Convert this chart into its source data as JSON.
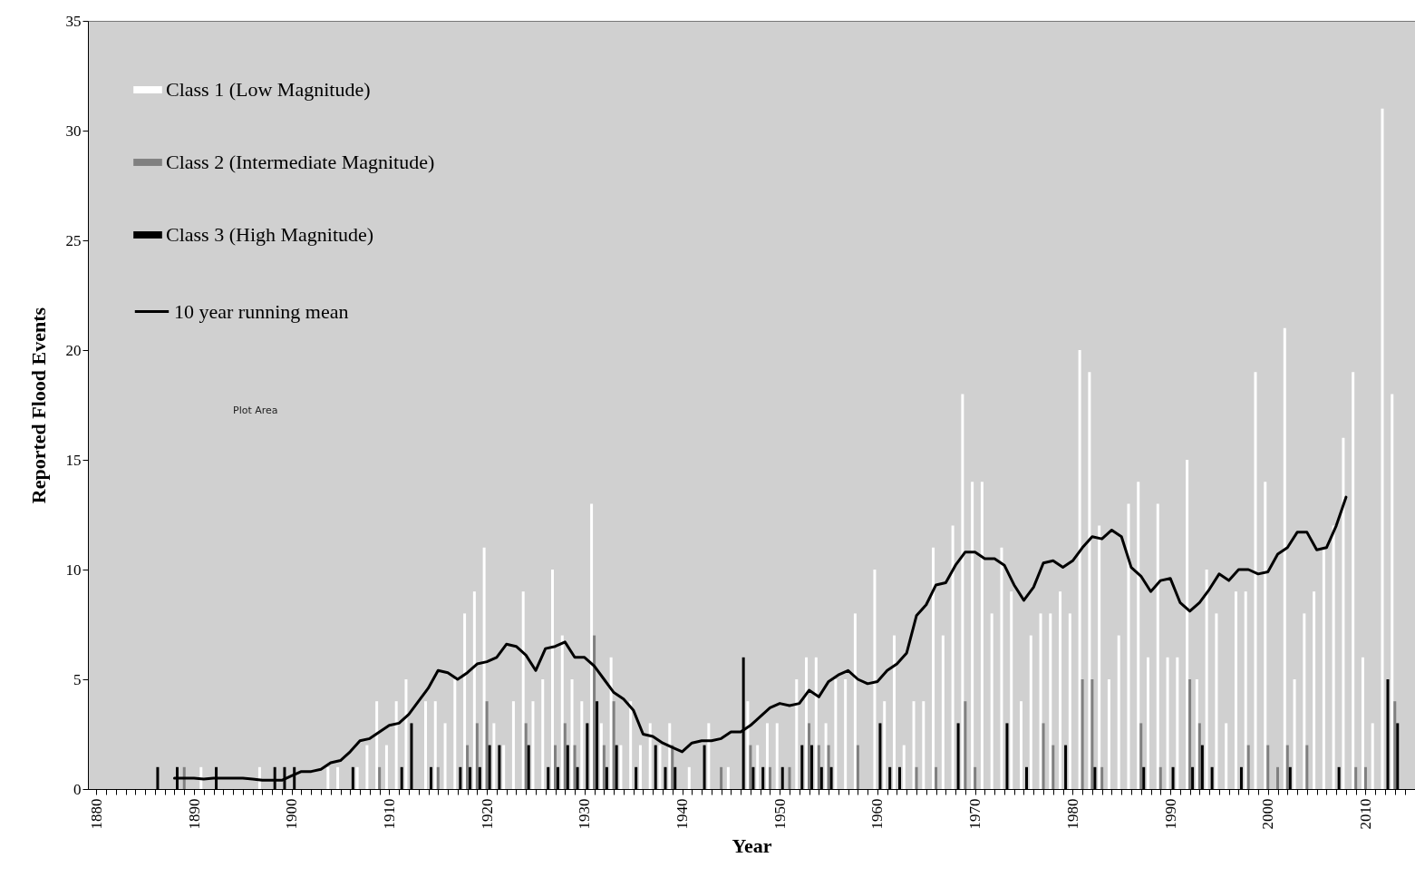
{
  "chart_data": {
    "type": "bar",
    "xlabel": "Year",
    "ylabel": "Reported Flood Events",
    "annotations": [
      "Plot Area"
    ],
    "x": [
      1886,
      1887,
      1888,
      1889,
      1890,
      1891,
      1892,
      1893,
      1894,
      1895,
      1896,
      1897,
      1898,
      1899,
      1900,
      1901,
      1902,
      1903,
      1904,
      1905,
      1906,
      1907,
      1908,
      1909,
      1910,
      1911,
      1912,
      1913,
      1914,
      1915,
      1916,
      1917,
      1918,
      1919,
      1920,
      1921,
      1922,
      1923,
      1924,
      1925,
      1926,
      1927,
      1928,
      1929,
      1930,
      1931,
      1932,
      1933,
      1934,
      1935,
      1936,
      1937,
      1938,
      1939,
      1940,
      1941,
      1942,
      1943,
      1944,
      1945,
      1946,
      1947,
      1948,
      1949,
      1950,
      1951,
      1952,
      1953,
      1954,
      1955,
      1956,
      1957,
      1958,
      1959,
      1960,
      1961,
      1962,
      1963,
      1964,
      1965,
      1966,
      1967,
      1968,
      1969,
      1970,
      1971,
      1972,
      1973,
      1974,
      1975,
      1976,
      1977,
      1978,
      1979,
      1980,
      1981,
      1982,
      1983,
      1984,
      1985,
      1986,
      1987,
      1988,
      1989,
      1990,
      1991,
      1992,
      1993,
      1994,
      1995,
      1996,
      1997,
      1998,
      1999,
      2000,
      2001,
      2002,
      2003,
      2004,
      2005,
      2006,
      2007,
      2008,
      2009,
      2010,
      2011,
      2012,
      2013
    ],
    "series": [
      {
        "name": "Class  1 (Low Magnitude)",
        "color": "#ffffff",
        "values": [
          0,
          0,
          0,
          0,
          0,
          1,
          0,
          0,
          0,
          0,
          0,
          1,
          0,
          0,
          0,
          0,
          0,
          0,
          1,
          1,
          0,
          1,
          2,
          4,
          2,
          4,
          5,
          0,
          4,
          4,
          3,
          5,
          8,
          9,
          11,
          3,
          2,
          4,
          9,
          4,
          5,
          10,
          7,
          5,
          4,
          13,
          3,
          6,
          2,
          4,
          2,
          3,
          2,
          3,
          0,
          1,
          0,
          3,
          0,
          1,
          0,
          4,
          2,
          3,
          3,
          0,
          5,
          6,
          6,
          3,
          5,
          5,
          8,
          0,
          10,
          4,
          7,
          2,
          4,
          4,
          11,
          7,
          12,
          18,
          14,
          14,
          8,
          11,
          9,
          4,
          7,
          8,
          8,
          9,
          8,
          20,
          19,
          12,
          5,
          7,
          13,
          14,
          6,
          13,
          6,
          6,
          15,
          5,
          10,
          8,
          3,
          9,
          9,
          19,
          14,
          0,
          21,
          5,
          8,
          9,
          11,
          12,
          16,
          19,
          6,
          3,
          31,
          18
        ]
      },
      {
        "name": "Class 2 (Intermediate Magnitude)",
        "color": "#808080",
        "values": [
          0,
          0,
          0,
          1,
          0,
          0,
          0,
          0,
          0,
          0,
          0,
          0,
          0,
          0,
          0,
          0,
          0,
          0,
          0,
          0,
          0,
          0,
          0,
          1,
          0,
          0,
          0,
          0,
          0,
          1,
          0,
          0,
          2,
          3,
          4,
          0,
          0,
          0,
          3,
          0,
          0,
          2,
          3,
          2,
          0,
          7,
          2,
          4,
          0,
          0,
          0,
          0,
          0,
          2,
          0,
          0,
          0,
          0,
          1,
          0,
          0,
          2,
          0,
          1,
          0,
          1,
          0,
          3,
          2,
          2,
          0,
          0,
          2,
          0,
          0,
          0,
          0,
          0,
          1,
          0,
          1,
          0,
          0,
          4,
          1,
          0,
          0,
          0,
          0,
          0,
          0,
          3,
          2,
          0,
          0,
          5,
          5,
          1,
          0,
          0,
          0,
          3,
          0,
          1,
          0,
          0,
          5,
          3,
          0,
          0,
          0,
          0,
          2,
          0,
          2,
          1,
          2,
          0,
          2,
          0,
          0,
          0,
          0,
          1,
          1,
          0,
          0,
          4
        ]
      },
      {
        "name": "Class 3 (High Magnitude)",
        "color": "#000000",
        "values": [
          1,
          0,
          1,
          0,
          0,
          0,
          1,
          0,
          0,
          0,
          0,
          0,
          1,
          1,
          1,
          0,
          0,
          0,
          0,
          0,
          1,
          0,
          0,
          0,
          0,
          1,
          3,
          0,
          1,
          0,
          0,
          1,
          1,
          1,
          2,
          2,
          0,
          0,
          2,
          0,
          1,
          1,
          2,
          1,
          3,
          4,
          1,
          2,
          0,
          1,
          0,
          2,
          1,
          1,
          0,
          0,
          2,
          0,
          0,
          0,
          6,
          1,
          1,
          0,
          1,
          0,
          2,
          2,
          1,
          1,
          0,
          0,
          0,
          0,
          3,
          1,
          1,
          0,
          0,
          0,
          0,
          0,
          3,
          0,
          0,
          0,
          0,
          3,
          0,
          1,
          0,
          0,
          0,
          2,
          0,
          0,
          1,
          0,
          0,
          0,
          0,
          1,
          0,
          0,
          1,
          0,
          1,
          2,
          1,
          0,
          0,
          1,
          0,
          0,
          0,
          0,
          1,
          0,
          0,
          0,
          0,
          1,
          0,
          0,
          0,
          0,
          5,
          3
        ]
      },
      {
        "name": "10 year running mean",
        "type": "line",
        "color": "#000000",
        "x": [
          1888,
          1889,
          1890,
          1891,
          1892,
          1893,
          1894,
          1895,
          1896,
          1897,
          1898,
          1899,
          1900,
          1901,
          1902,
          1903,
          1904,
          1905,
          1906,
          1907,
          1908,
          1909,
          1910,
          1911,
          1912,
          1913,
          1914,
          1915,
          1916,
          1917,
          1918,
          1919,
          1920,
          1921,
          1922,
          1923,
          1924,
          1925,
          1926,
          1927,
          1928,
          1929,
          1930,
          1931,
          1932,
          1933,
          1934,
          1935,
          1936,
          1937,
          1938,
          1939,
          1940,
          1941,
          1942,
          1943,
          1944,
          1945,
          1946,
          1947,
          1948,
          1949,
          1950,
          1951,
          1952,
          1953,
          1954,
          1955,
          1956,
          1957,
          1958,
          1959,
          1960,
          1961,
          1962,
          1963,
          1964,
          1965,
          1966,
          1967,
          1968,
          1969,
          1970,
          1971,
          1972,
          1973,
          1974,
          1975,
          1976,
          1977,
          1978,
          1979,
          1980,
          1981,
          1982,
          1983,
          1984,
          1985,
          1986,
          1987,
          1988,
          1989,
          1990,
          1991,
          1992,
          1993,
          1994,
          1995,
          1996,
          1997,
          1998,
          1999,
          2000,
          2001,
          2002,
          2003,
          2004,
          2005,
          2006,
          2007,
          2008
        ],
        "values": [
          0.5,
          0.5,
          0.5,
          0.45,
          0.5,
          0.5,
          0.5,
          0.5,
          0.45,
          0.4,
          0.4,
          0.4,
          0.6,
          0.8,
          0.8,
          0.9,
          1.2,
          1.3,
          1.7,
          2.2,
          2.3,
          2.6,
          2.9,
          3.0,
          3.4,
          4.0,
          4.6,
          5.4,
          5.3,
          5.0,
          5.3,
          5.7,
          5.8,
          6.0,
          6.6,
          6.5,
          6.1,
          5.4,
          6.4,
          6.5,
          6.7,
          6.0,
          6.0,
          5.6,
          5.0,
          4.4,
          4.1,
          3.6,
          2.5,
          2.4,
          2.1,
          1.9,
          1.7,
          2.1,
          2.2,
          2.2,
          2.3,
          2.6,
          2.6,
          2.9,
          3.3,
          3.7,
          3.9,
          3.8,
          3.9,
          4.5,
          4.2,
          4.9,
          5.2,
          5.4,
          5.0,
          4.8,
          4.9,
          5.4,
          5.7,
          6.2,
          7.9,
          8.4,
          9.3,
          9.4,
          10.2,
          10.8,
          10.8,
          10.5,
          10.5,
          10.2,
          9.3,
          8.6,
          9.2,
          10.3,
          10.4,
          10.1,
          10.4,
          11.0,
          11.5,
          11.4,
          11.8,
          11.5,
          10.1,
          9.7,
          9.0,
          9.5,
          9.6,
          8.5,
          8.1,
          8.5,
          9.1,
          9.8,
          9.5,
          10.0,
          10.0,
          9.8,
          9.9,
          10.7,
          11.0,
          11.7,
          11.7,
          10.9,
          11.0,
          12.0,
          13.3
        ]
      }
    ],
    "xlim": [
      1879.6,
      2014.6
    ],
    "xticks": [
      1880,
      {
        "value": 1881,
        "label": null
      },
      {
        "value": 1882,
        "label": null
      },
      {
        "value": 1883,
        "label": null
      },
      {
        "value": 1884,
        "label": null
      },
      {
        "value": 1885,
        "label": null
      },
      {
        "value": 1886,
        "label": null
      },
      {
        "value": 1887,
        "label": null
      },
      {
        "value": 1888,
        "label": null
      },
      {
        "value": 1889,
        "label": null
      },
      1890,
      {
        "value": 1891,
        "label": null
      },
      {
        "value": 1892,
        "label": null
      },
      {
        "value": 1893,
        "label": null
      },
      {
        "value": 1894,
        "label": null
      },
      {
        "value": 1895,
        "label": null
      },
      {
        "value": 1896,
        "label": null
      },
      {
        "value": 1897,
        "label": null
      },
      {
        "value": 1898,
        "label": null
      },
      {
        "value": 1899,
        "label": null
      },
      1900,
      {
        "value": 1901,
        "label": null
      },
      {
        "value": 1902,
        "label": null
      },
      {
        "value": 1903,
        "label": null
      },
      {
        "value": 1904,
        "label": null
      },
      {
        "value": 1905,
        "label": null
      },
      {
        "value": 1906,
        "label": null
      },
      {
        "value": 1907,
        "label": null
      },
      {
        "value": 1908,
        "label": null
      },
      {
        "value": 1909,
        "label": null
      },
      1910,
      {
        "value": 1911,
        "label": null
      },
      {
        "value": 1912,
        "label": null
      },
      {
        "value": 1913,
        "label": null
      },
      {
        "value": 1914,
        "label": null
      },
      {
        "value": 1915,
        "label": null
      },
      {
        "value": 1916,
        "label": null
      },
      {
        "value": 1917,
        "label": null
      },
      {
        "value": 1918,
        "label": null
      },
      {
        "value": 1919,
        "label": null
      },
      1920,
      {
        "value": 1921,
        "label": null
      },
      {
        "value": 1922,
        "label": null
      },
      {
        "value": 1923,
        "label": null
      },
      {
        "value": 1924,
        "label": null
      },
      {
        "value": 1925,
        "label": null
      },
      {
        "value": 1926,
        "label": null
      },
      {
        "value": 1927,
        "label": null
      },
      {
        "value": 1928,
        "label": null
      },
      {
        "value": 1929,
        "label": null
      },
      1930,
      {
        "value": 1931,
        "label": null
      },
      {
        "value": 1932,
        "label": null
      },
      {
        "value": 1933,
        "label": null
      },
      {
        "value": 1934,
        "label": null
      },
      {
        "value": 1935,
        "label": null
      },
      {
        "value": 1936,
        "label": null
      },
      {
        "value": 1937,
        "label": null
      },
      {
        "value": 1938,
        "label": null
      },
      {
        "value": 1939,
        "label": null
      },
      1940,
      {
        "value": 1941,
        "label": null
      },
      {
        "value": 1942,
        "label": null
      },
      {
        "value": 1943,
        "label": null
      },
      {
        "value": 1944,
        "label": null
      },
      {
        "value": 1945,
        "label": null
      },
      {
        "value": 1946,
        "label": null
      },
      {
        "value": 1947,
        "label": null
      },
      {
        "value": 1948,
        "label": null
      },
      {
        "value": 1949,
        "label": null
      },
      1950,
      {
        "value": 1951,
        "label": null
      },
      {
        "value": 1952,
        "label": null
      },
      {
        "value": 1953,
        "label": null
      },
      {
        "value": 1954,
        "label": null
      },
      {
        "value": 1955,
        "label": null
      },
      {
        "value": 1956,
        "label": null
      },
      {
        "value": 1957,
        "label": null
      },
      {
        "value": 1958,
        "label": null
      },
      {
        "value": 1959,
        "label": null
      },
      1960,
      {
        "value": 1961,
        "label": null
      },
      {
        "value": 1962,
        "label": null
      },
      {
        "value": 1963,
        "label": null
      },
      {
        "value": 1964,
        "label": null
      },
      {
        "value": 1965,
        "label": null
      },
      {
        "value": 1966,
        "label": null
      },
      {
        "value": 1967,
        "label": null
      },
      {
        "value": 1968,
        "label": null
      },
      {
        "value": 1969,
        "label": null
      },
      1970,
      {
        "value": 1971,
        "label": null
      },
      {
        "value": 1972,
        "label": null
      },
      {
        "value": 1973,
        "label": null
      },
      {
        "value": 1974,
        "label": null
      },
      {
        "value": 1975,
        "label": null
      },
      {
        "value": 1976,
        "label": null
      },
      {
        "value": 1977,
        "label": null
      },
      {
        "value": 1978,
        "label": null
      },
      {
        "value": 1979,
        "label": null
      },
      1980,
      {
        "value": 1981,
        "label": null
      },
      {
        "value": 1982,
        "label": null
      },
      {
        "value": 1983,
        "label": null
      },
      {
        "value": 1984,
        "label": null
      },
      {
        "value": 1985,
        "label": null
      },
      {
        "value": 1986,
        "label": null
      },
      {
        "value": 1987,
        "label": null
      },
      {
        "value": 1988,
        "label": null
      },
      {
        "value": 1989,
        "label": null
      },
      1990,
      {
        "value": 1991,
        "label": null
      },
      {
        "value": 1992,
        "label": null
      },
      {
        "value": 1993,
        "label": null
      },
      {
        "value": 1994,
        "label": null
      },
      {
        "value": 1995,
        "label": null
      },
      {
        "value": 1996,
        "label": null
      },
      {
        "value": 1997,
        "label": null
      },
      {
        "value": 1998,
        "label": null
      },
      {
        "value": 1999,
        "label": null
      },
      2000,
      {
        "value": 2001,
        "label": null
      },
      {
        "value": 2002,
        "label": null
      },
      {
        "value": 2003,
        "label": null
      },
      {
        "value": 2004,
        "label": null
      },
      {
        "value": 2005,
        "label": null
      },
      {
        "value": 2006,
        "label": null
      },
      {
        "value": 2007,
        "label": null
      },
      {
        "value": 2008,
        "label": null
      },
      {
        "value": 2009,
        "label": null
      },
      2010,
      {
        "value": 2011,
        "label": null
      },
      {
        "value": 2012,
        "label": null
      },
      {
        "value": 2013,
        "label": null
      },
      {
        "value": 2014,
        "label": null
      }
    ],
    "ylim": [
      0,
      35
    ],
    "yticks": [
      0,
      5,
      10,
      15,
      20,
      25,
      30,
      35
    ],
    "legend": "top left",
    "marker": "none",
    "line_style": "solid"
  }
}
